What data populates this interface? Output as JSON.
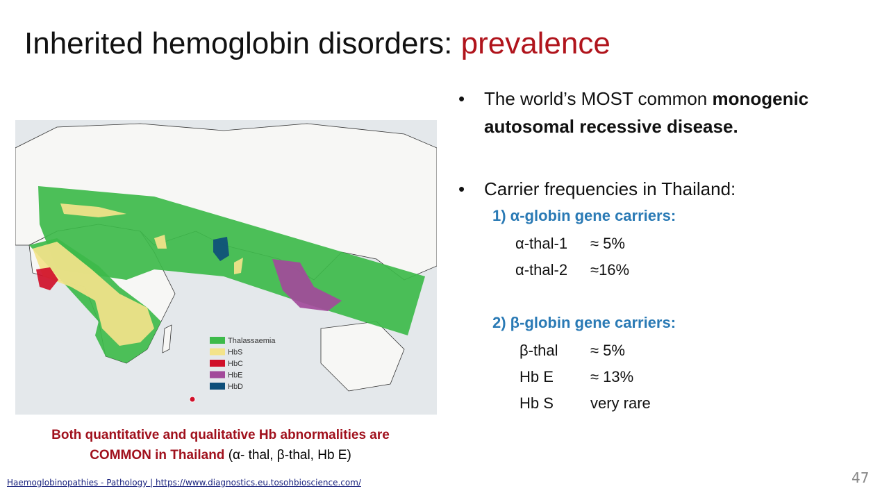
{
  "title": {
    "main": "Inherited hemoglobin disorders: ",
    "highlight": "prevalence"
  },
  "map": {
    "legend": [
      {
        "label": "Thalassaemia",
        "color": "#3dba4a"
      },
      {
        "label": "HbS",
        "color": "#f3e38a"
      },
      {
        "label": "HbC",
        "color": "#d0102a"
      },
      {
        "label": "HbE",
        "color": "#a24a9a"
      },
      {
        "label": "HbD",
        "color": "#0d4f7a"
      }
    ]
  },
  "caption": {
    "bold": "Both quantitative and qualitative Hb abnormalities are COMMON in Thailand",
    "normal": "(α- thal, β-thal, Hb E)"
  },
  "bullets": [
    {
      "text": "The world’s MOST common ",
      "bold": "monogenic autosomal recessive disease."
    },
    {
      "text": "Carrier frequencies in Thailand:"
    }
  ],
  "groups": [
    {
      "heading": "1) α-globin gene carriers:",
      "rows": [
        [
          "α-thal-1",
          "≈ 5%"
        ],
        [
          "α-thal-2",
          "≈16%"
        ]
      ]
    },
    {
      "heading": "2) β-globin gene carriers:",
      "rows": [
        [
          "β-thal",
          "≈ 5%"
        ],
        [
          "Hb E",
          "≈ 13%"
        ],
        [
          "Hb S",
          "very rare"
        ]
      ]
    }
  ],
  "source": "Haemoglobinopathies - Pathology | https://www.diagnostics.eu.tosohbioscience.com/",
  "page_number": "47"
}
